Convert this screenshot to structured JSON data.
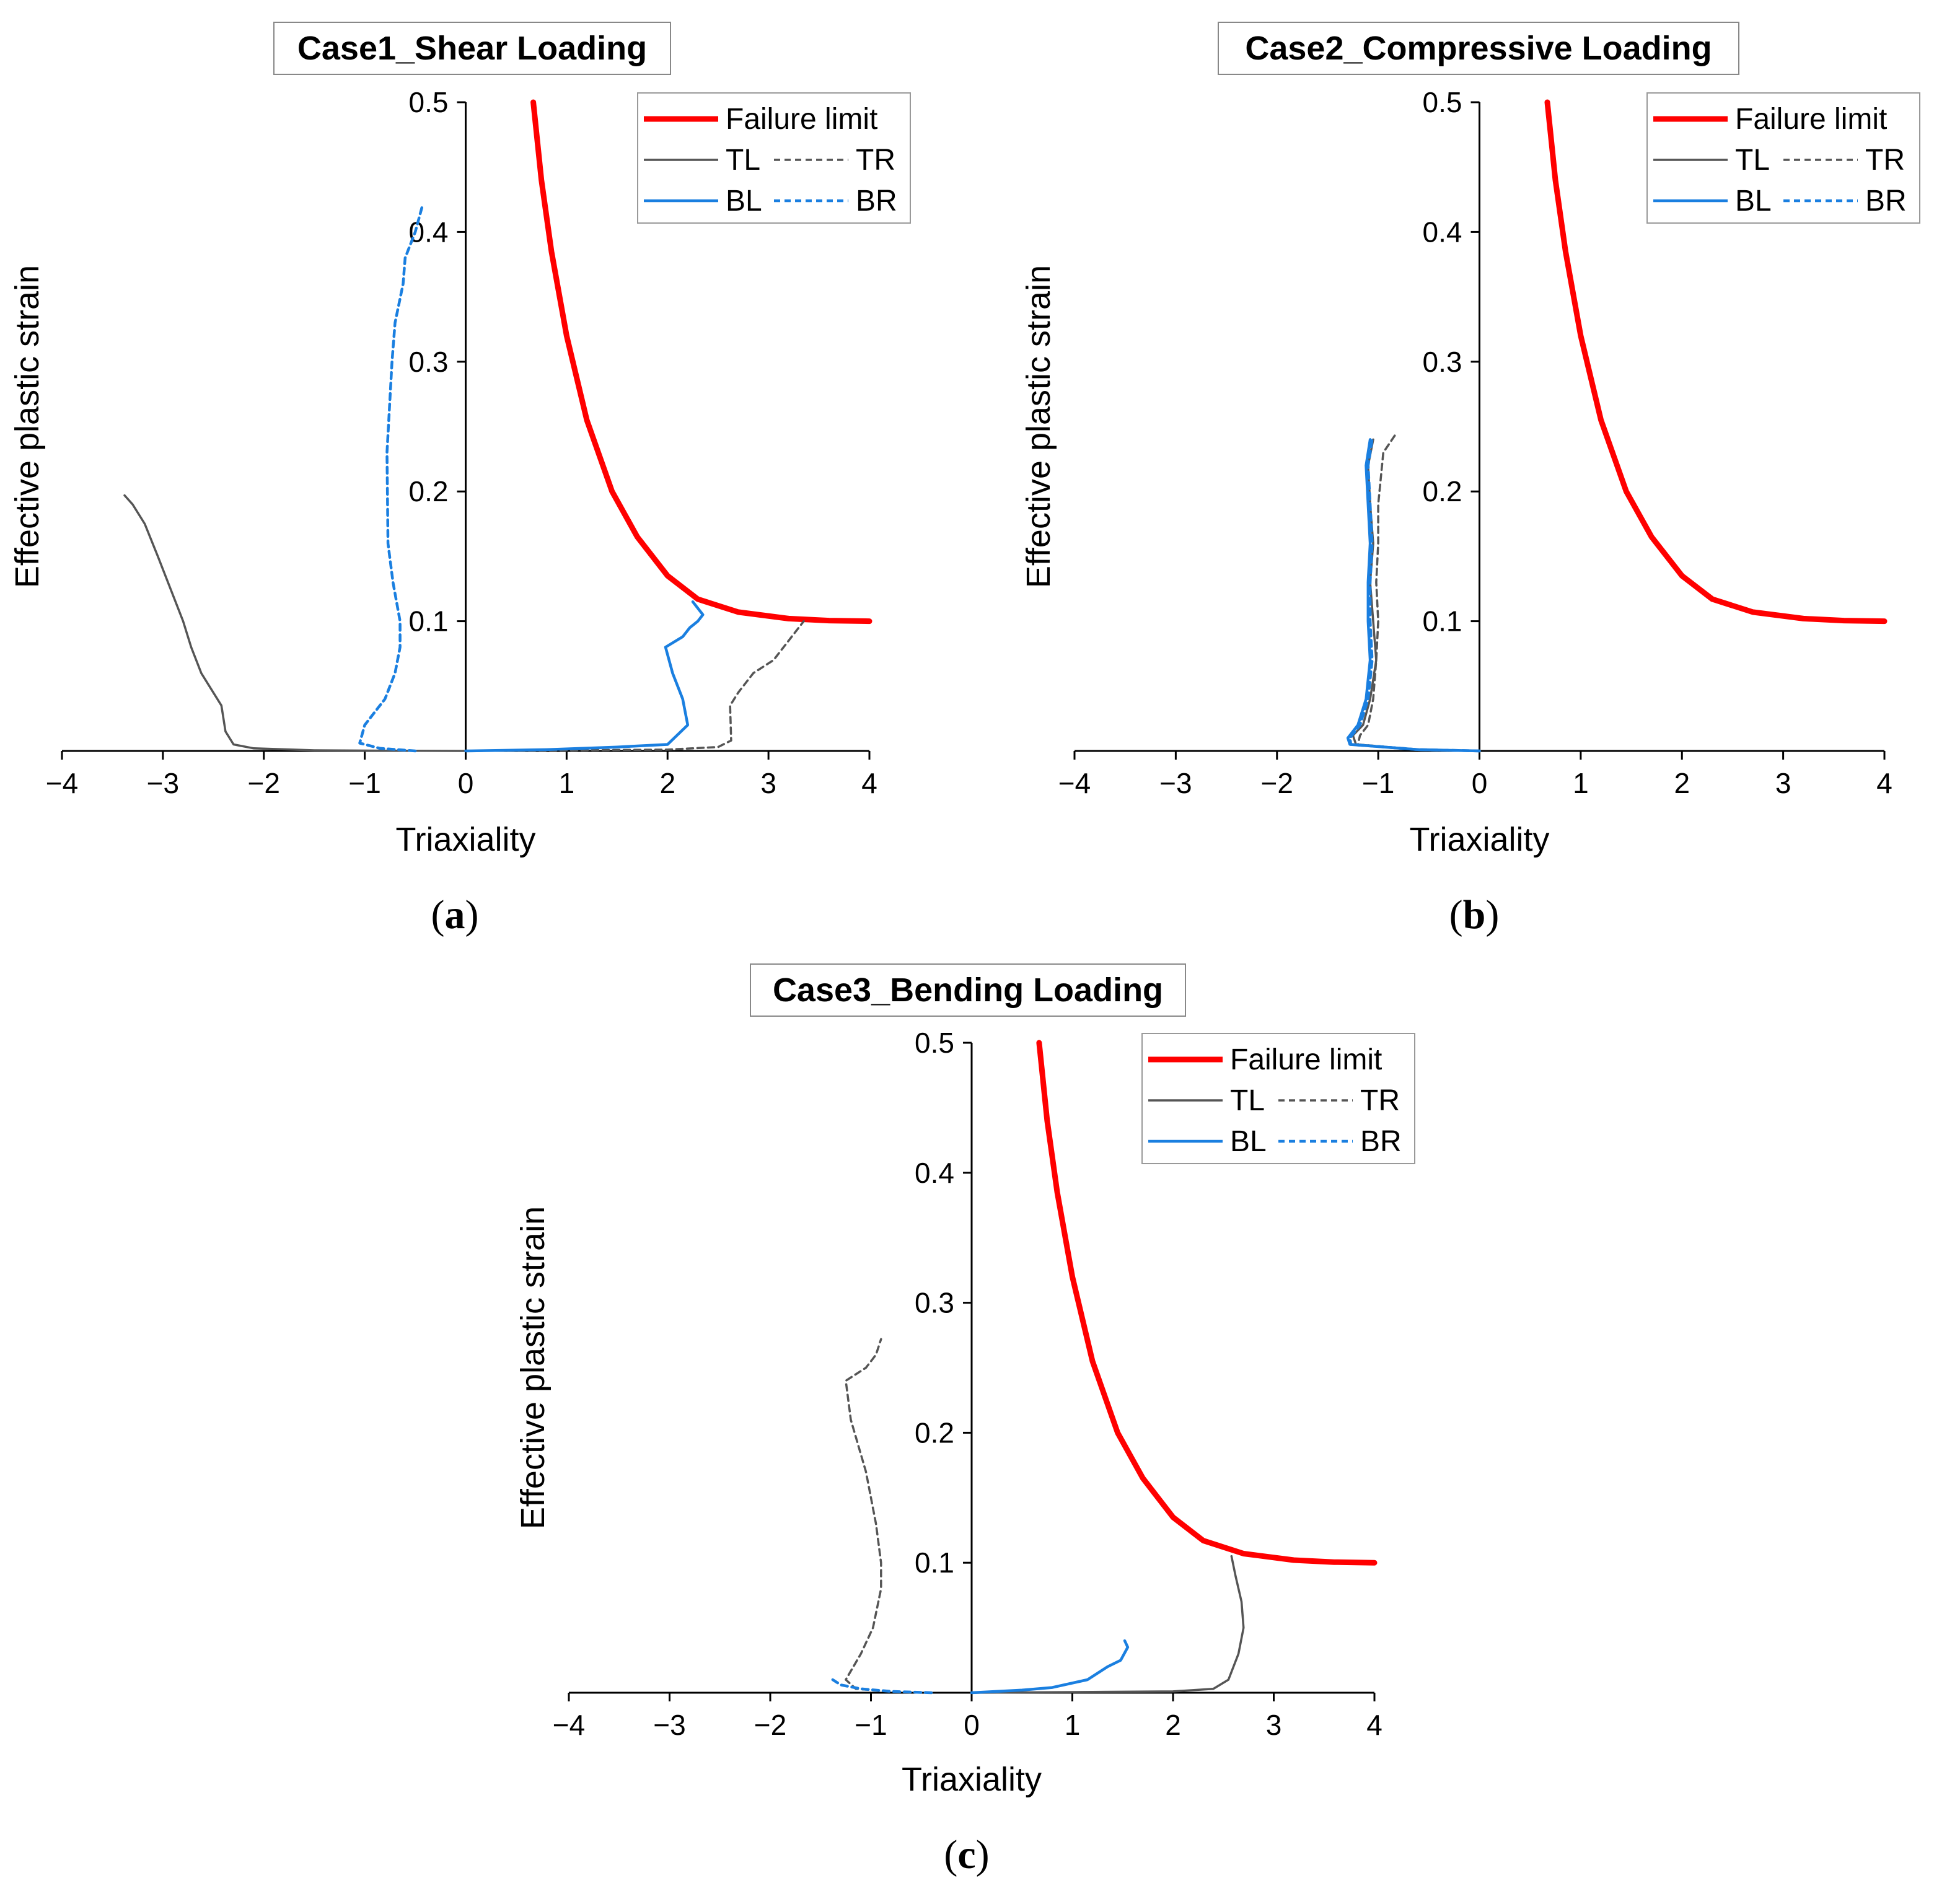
{
  "colors": {
    "failure": "#ff0000",
    "tl": "#555555",
    "tr": "#555555",
    "bl": "#1a7fe0",
    "br": "#1a7fe0",
    "axis": "#000000"
  },
  "chart_data": [
    {
      "type": "line",
      "panel_label": "a",
      "title": "Case1_Shear Loading",
      "xlabel": "Triaxiality",
      "ylabel": "Effective plastic strain",
      "xlim": [
        -4,
        4
      ],
      "ylim": [
        0,
        0.5
      ],
      "xticks": [
        "−4",
        "−3",
        "−2",
        "−1",
        "0",
        "1",
        "2",
        "3",
        "4"
      ],
      "yticks": [
        "0.1",
        "0.2",
        "0.3",
        "0.4",
        "0.5"
      ],
      "legend": {
        "placement": "top-right",
        "failure": "Failure limit",
        "tl": "TL",
        "tr": "TR",
        "bl": "BL",
        "br": "BR"
      },
      "series": [
        {
          "name": "Failure limit",
          "key": "failure",
          "x": [
            0.67,
            0.75,
            0.85,
            1.0,
            1.2,
            1.45,
            1.7,
            2.0,
            2.3,
            2.7,
            3.2,
            3.6,
            4.0
          ],
          "y": [
            0.5,
            0.44,
            0.385,
            0.32,
            0.255,
            0.2,
            0.165,
            0.135,
            0.117,
            0.107,
            0.102,
            0.1005,
            0.1
          ]
        },
        {
          "name": "TL",
          "key": "tl",
          "x": [
            -3.38,
            -3.3,
            -3.18,
            -3.05,
            -2.9,
            -2.8,
            -2.72,
            -2.62,
            -2.5,
            -2.42,
            -2.38,
            -2.3,
            -2.1,
            -1.5,
            -0.8,
            0.0
          ],
          "y": [
            0.197,
            0.19,
            0.175,
            0.15,
            0.12,
            0.1,
            0.08,
            0.06,
            0.045,
            0.035,
            0.015,
            0.005,
            0.002,
            0.0005,
            0.0002,
            0.0
          ]
        },
        {
          "name": "TR",
          "key": "tr",
          "x": [
            0.0,
            1.0,
            2.0,
            2.5,
            2.63,
            2.62,
            2.7,
            2.85,
            3.05,
            3.25,
            3.35
          ],
          "y": [
            0.0,
            0.0005,
            0.001,
            0.003,
            0.008,
            0.035,
            0.045,
            0.06,
            0.07,
            0.09,
            0.1
          ]
        },
        {
          "name": "BL",
          "key": "bl",
          "x": [
            0.0,
            0.8,
            1.5,
            2.0,
            2.2,
            2.15,
            2.05,
            1.98,
            2.15,
            2.22,
            2.3,
            2.35,
            2.25
          ],
          "y": [
            0.0,
            0.001,
            0.003,
            0.005,
            0.02,
            0.04,
            0.06,
            0.08,
            0.088,
            0.095,
            0.1,
            0.105,
            0.115
          ]
        },
        {
          "name": "BR",
          "key": "br",
          "x": [
            -0.5,
            -0.85,
            -1.05,
            -1.0,
            -0.8,
            -0.7,
            -0.65,
            -0.65,
            -0.72,
            -0.77,
            -0.78,
            -0.73,
            -0.7,
            -0.62,
            -0.6,
            -0.5,
            -0.43
          ],
          "y": [
            0.0,
            0.002,
            0.006,
            0.02,
            0.04,
            0.06,
            0.08,
            0.1,
            0.13,
            0.16,
            0.23,
            0.3,
            0.33,
            0.36,
            0.38,
            0.4,
            0.42
          ]
        }
      ]
    },
    {
      "type": "line",
      "panel_label": "b",
      "title": "Case2_Compressive Loading",
      "xlabel": "Triaxiality",
      "ylabel": "Effective plastic strain",
      "xlim": [
        -4,
        4
      ],
      "ylim": [
        0,
        0.5
      ],
      "xticks": [
        "−4",
        "−3",
        "−2",
        "−1",
        "0",
        "1",
        "2",
        "3",
        "4"
      ],
      "yticks": [
        "0.1",
        "0.2",
        "0.3",
        "0.4",
        "0.5"
      ],
      "legend": {
        "placement": "top-right",
        "failure": "Failure limit",
        "tl": "TL",
        "tr": "TR",
        "bl": "BL",
        "br": "BR"
      },
      "series": [
        {
          "name": "Failure limit",
          "key": "failure",
          "x": [
            0.67,
            0.75,
            0.85,
            1.0,
            1.2,
            1.45,
            1.7,
            2.0,
            2.3,
            2.7,
            3.2,
            3.6,
            4.0
          ],
          "y": [
            0.5,
            0.44,
            0.385,
            0.32,
            0.255,
            0.2,
            0.165,
            0.135,
            0.117,
            0.107,
            0.102,
            0.1005,
            0.1
          ]
        },
        {
          "name": "TL",
          "key": "tl",
          "x": [
            0.0,
            -0.6,
            -1.22,
            -1.25,
            -1.15,
            -1.08,
            -1.02,
            -1.05,
            -1.08,
            -1.05,
            -1.08,
            -1.1,
            -1.05
          ],
          "y": [
            0.0,
            0.001,
            0.005,
            0.012,
            0.02,
            0.04,
            0.07,
            0.1,
            0.13,
            0.16,
            0.19,
            0.22,
            0.24
          ]
        },
        {
          "name": "TR",
          "key": "tr",
          "x": [
            0.0,
            -0.6,
            -1.2,
            -1.18,
            -1.1,
            -1.05,
            -1.02,
            -1.0,
            -1.02,
            -1.0,
            -1.0,
            -0.95,
            -0.82
          ],
          "y": [
            0.0,
            0.001,
            0.005,
            0.012,
            0.02,
            0.04,
            0.07,
            0.1,
            0.13,
            0.16,
            0.19,
            0.23,
            0.245
          ]
        },
        {
          "name": "BL",
          "key": "bl",
          "x": [
            0.0,
            -0.6,
            -1.28,
            -1.3,
            -1.2,
            -1.12,
            -1.08,
            -1.1,
            -1.1,
            -1.08,
            -1.1,
            -1.12,
            -1.08
          ],
          "y": [
            0.0,
            0.001,
            0.005,
            0.01,
            0.02,
            0.04,
            0.07,
            0.1,
            0.13,
            0.16,
            0.19,
            0.22,
            0.24
          ]
        },
        {
          "name": "BR",
          "key": "br",
          "x": [
            0.0,
            -0.6,
            -1.27,
            -1.28,
            -1.18,
            -1.1,
            -1.06,
            -1.08,
            -1.08,
            -1.06,
            -1.08,
            -1.1,
            -1.06
          ],
          "y": [
            0.0,
            0.001,
            0.005,
            0.01,
            0.02,
            0.04,
            0.07,
            0.1,
            0.13,
            0.16,
            0.19,
            0.22,
            0.24
          ]
        }
      ]
    },
    {
      "type": "line",
      "panel_label": "c",
      "title": "Case3_Bending Loading",
      "xlabel": "Triaxiality",
      "ylabel": "Effective plastic strain",
      "xlim": [
        -4,
        4
      ],
      "ylim": [
        0,
        0.5
      ],
      "xticks": [
        "−4",
        "−3",
        "−2",
        "−1",
        "0",
        "1",
        "2",
        "3",
        "4"
      ],
      "yticks": [
        "0.1",
        "0.2",
        "0.3",
        "0.4",
        "0.5"
      ],
      "legend": {
        "placement": "top-right",
        "failure": "Failure limit",
        "tl": "TL",
        "tr": "TR",
        "bl": "BL",
        "br": "BR"
      },
      "series": [
        {
          "name": "Failure limit",
          "key": "failure",
          "x": [
            0.67,
            0.75,
            0.85,
            1.0,
            1.2,
            1.45,
            1.7,
            2.0,
            2.3,
            2.7,
            3.2,
            3.6,
            4.0
          ],
          "y": [
            0.5,
            0.44,
            0.385,
            0.32,
            0.255,
            0.2,
            0.165,
            0.135,
            0.117,
            0.107,
            0.102,
            0.1005,
            0.1
          ]
        },
        {
          "name": "TL",
          "key": "tl",
          "x": [
            0.0,
            1.0,
            2.0,
            2.4,
            2.55,
            2.65,
            2.7,
            2.68,
            2.62,
            2.58
          ],
          "y": [
            0.0,
            0.0005,
            0.001,
            0.003,
            0.01,
            0.03,
            0.05,
            0.07,
            0.09,
            0.105
          ]
        },
        {
          "name": "TR",
          "key": "tr",
          "x": [
            -0.4,
            -0.8,
            -1.15,
            -1.25,
            -1.1,
            -0.98,
            -0.9,
            -0.9,
            -0.95,
            -1.05,
            -1.2,
            -1.25,
            -1.05,
            -0.95,
            -0.9
          ],
          "y": [
            0.0,
            0.001,
            0.003,
            0.01,
            0.03,
            0.05,
            0.08,
            0.1,
            0.13,
            0.17,
            0.21,
            0.24,
            0.25,
            0.26,
            0.272
          ]
        },
        {
          "name": "BL",
          "key": "bl",
          "x": [
            0.0,
            0.5,
            0.8,
            1.15,
            1.35,
            1.48,
            1.55,
            1.52
          ],
          "y": [
            0.0,
            0.002,
            0.004,
            0.01,
            0.02,
            0.025,
            0.035,
            0.04
          ]
        },
        {
          "name": "BR",
          "key": "br",
          "x": [
            -0.4,
            -0.8,
            -1.1,
            -1.3,
            -1.38
          ],
          "y": [
            0.0,
            0.001,
            0.003,
            0.006,
            0.01
          ]
        }
      ]
    }
  ]
}
